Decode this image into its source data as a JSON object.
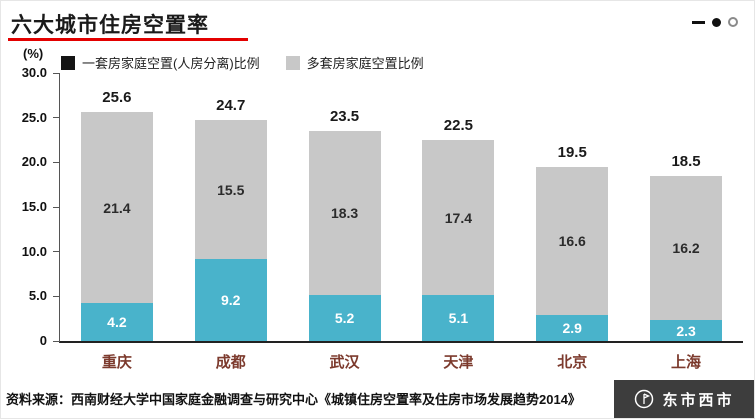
{
  "header": {
    "title": "六大城市住房空置率",
    "accent_color": "#e30000"
  },
  "chart_data": {
    "type": "bar",
    "stacked": true,
    "title": "六大城市住房空置率",
    "unit_label": "(%)",
    "ylim": [
      0,
      30
    ],
    "grid": false,
    "legend_position": "top",
    "y_ticks": [
      "30.0",
      "25.0",
      "20.0",
      "15.0",
      "10.0",
      "5.0",
      "0"
    ],
    "categories": [
      "重庆",
      "成都",
      "武汉",
      "天津",
      "北京",
      "上海"
    ],
    "category_label_color": "#7c3a2d",
    "series": [
      {
        "name": "一套房家庭空置(人房分离)比例",
        "legend_color": "#141414",
        "color": "#49b3cb",
        "values": [
          4.2,
          9.2,
          5.2,
          5.1,
          2.9,
          2.3
        ]
      },
      {
        "name": "多套房家庭空置比例",
        "legend_color": "#c8c8c8",
        "color": "#c8c8c8",
        "values": [
          21.4,
          15.5,
          18.3,
          17.4,
          16.6,
          16.2
        ]
      }
    ],
    "totals": [
      25.6,
      24.7,
      23.5,
      22.5,
      19.5,
      18.5
    ]
  },
  "footer": {
    "source": "资料来源：西南财经大学中国家庭金融调查与研究中心《城镇住房空置率及住房市场发展趋势2014》",
    "watermark": "东市西市"
  }
}
